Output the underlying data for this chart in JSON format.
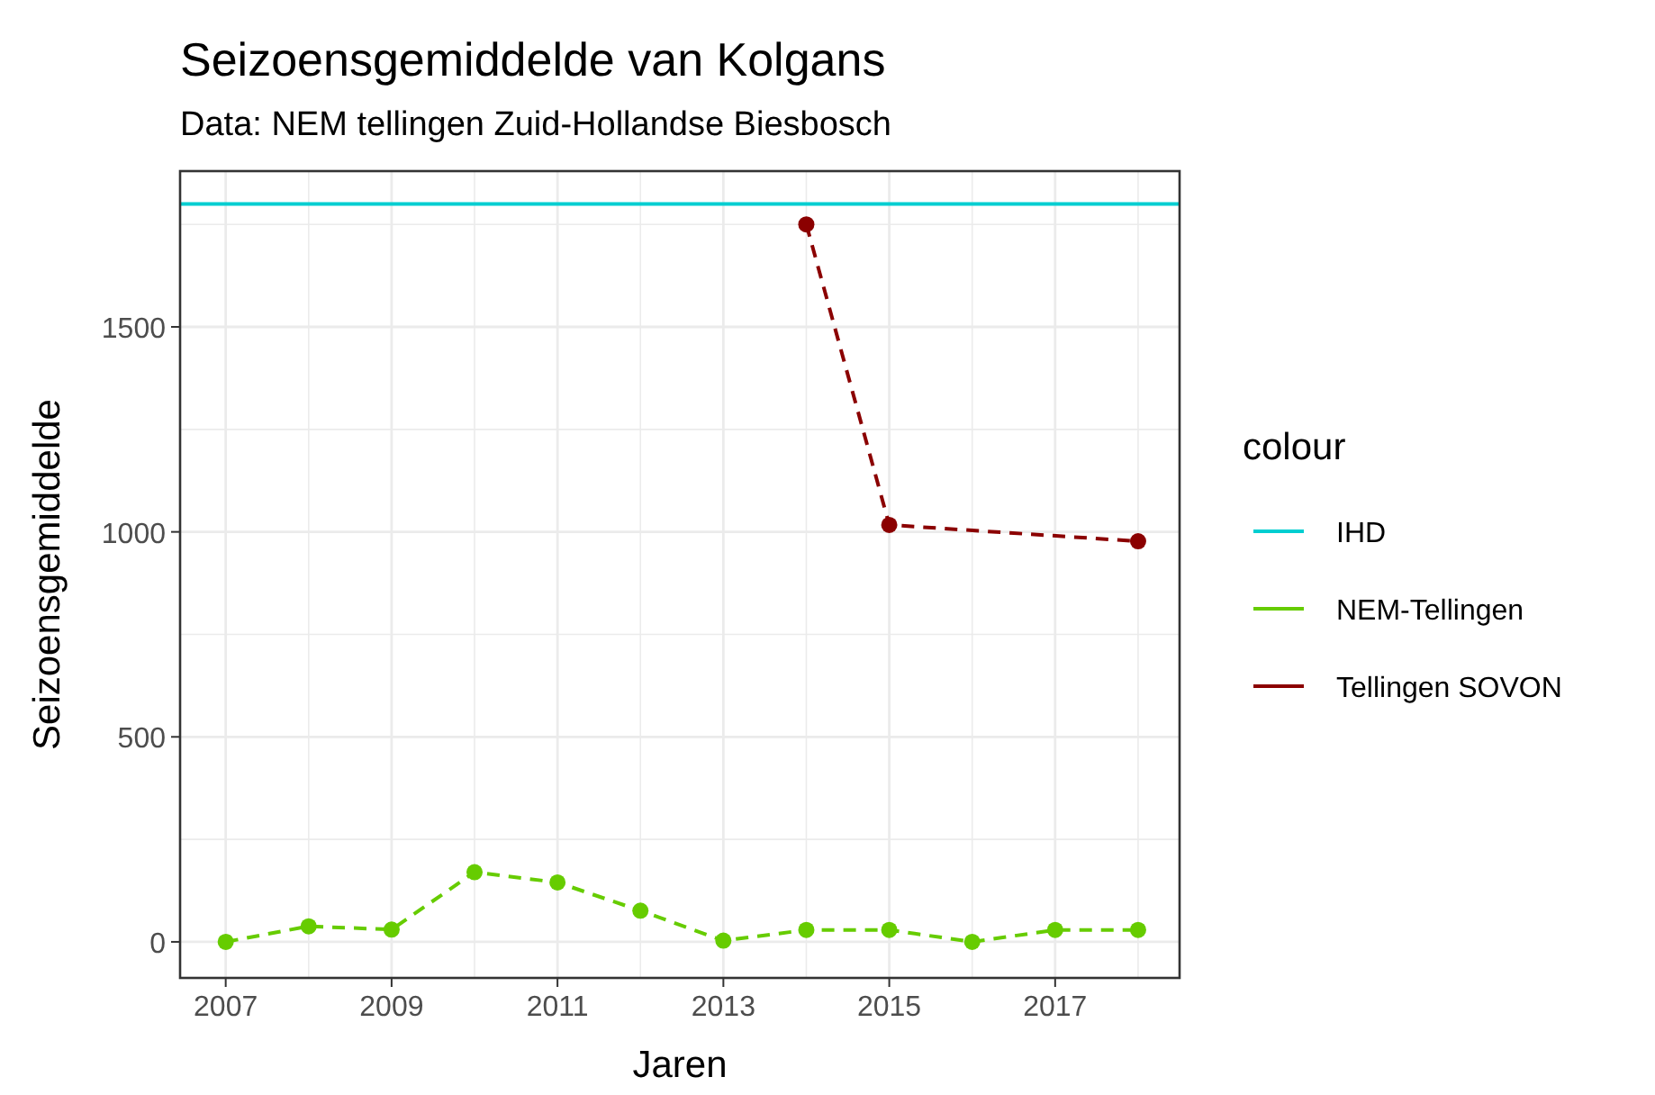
{
  "chart_data": {
    "type": "line",
    "title": "Seizoensgemiddelde van Kolgans",
    "subtitle": "Data: NEM tellingen Zuid-Hollandse Biesbosch",
    "xlabel": "Jaren",
    "ylabel": "Seizoensgemiddelde",
    "legend_title": "colour",
    "x": [
      2007,
      2008,
      2009,
      2010,
      2011,
      2012,
      2013,
      2014,
      2015,
      2016,
      2017,
      2018
    ],
    "series": [
      {
        "name": "NEM-Tellingen",
        "color": "#66cc00",
        "values": [
          0,
          38,
          30,
          170,
          145,
          76,
          3,
          29,
          29,
          0,
          29,
          29
        ]
      },
      {
        "name": "Tellingen SOVON",
        "color": "#8b0000",
        "values": [
          null,
          null,
          null,
          null,
          null,
          null,
          null,
          1750,
          1017,
          null,
          null,
          977
        ]
      }
    ],
    "ref_lines": [
      {
        "axis": "y",
        "value": 1800,
        "label": "IHD",
        "color": "#00ced1",
        "line_style": "solid"
      }
    ],
    "xlim": [
      2006.45,
      2018.5
    ],
    "ylim": [
      -88,
      1880
    ],
    "xticks": [
      2007,
      {
        "value": 2008,
        "label": null
      },
      2009,
      {
        "value": 2010,
        "label": null
      },
      2011,
      {
        "value": 2012,
        "label": null
      },
      2013,
      {
        "value": 2014,
        "label": null
      },
      2015,
      {
        "value": 2016,
        "label": null
      },
      2017,
      {
        "value": 2018,
        "label": null
      }
    ],
    "yticks": [
      0,
      {
        "value": 250,
        "label": null
      },
      500,
      {
        "value": 750,
        "label": null
      },
      1000,
      {
        "value": 1250,
        "label": null
      },
      1500,
      {
        "value": 1750,
        "label": null
      }
    ],
    "grid": true,
    "legend": "right",
    "marker": "circle",
    "line_style": "dashed"
  }
}
